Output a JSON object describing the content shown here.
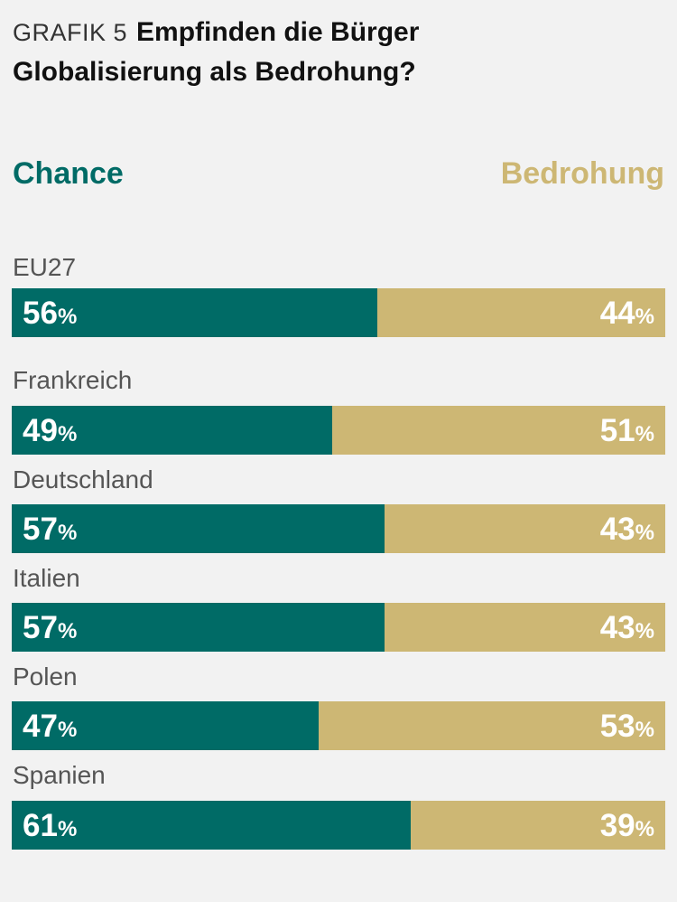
{
  "header": {
    "kicker": "GRAFIK 5",
    "title_line1": "Empfinden die Bürger",
    "title_line2": "Globalisierung als Bedrohung?"
  },
  "legend": {
    "left": "Chance",
    "right": "Bedrohung"
  },
  "colors": {
    "chance": "#006b66",
    "bedrohung": "#cdb774",
    "background": "#f2f2f2"
  },
  "chart_data": {
    "type": "bar",
    "orientation": "horizontal",
    "stacked": true,
    "title": "Empfinden die Bürger Globalisierung als Bedrohung?",
    "categories": [
      "EU27",
      "Frankreich",
      "Deutschland",
      "Italien",
      "Polen",
      "Spanien"
    ],
    "series": [
      {
        "name": "Chance",
        "values": [
          56,
          49,
          57,
          57,
          47,
          61
        ],
        "color": "#006b66"
      },
      {
        "name": "Bedrohung",
        "values": [
          44,
          51,
          43,
          43,
          53,
          39
        ],
        "color": "#cdb774"
      }
    ],
    "unit": "%",
    "ylim": [
      0,
      100
    ],
    "grid": false,
    "legend_position": "top"
  }
}
